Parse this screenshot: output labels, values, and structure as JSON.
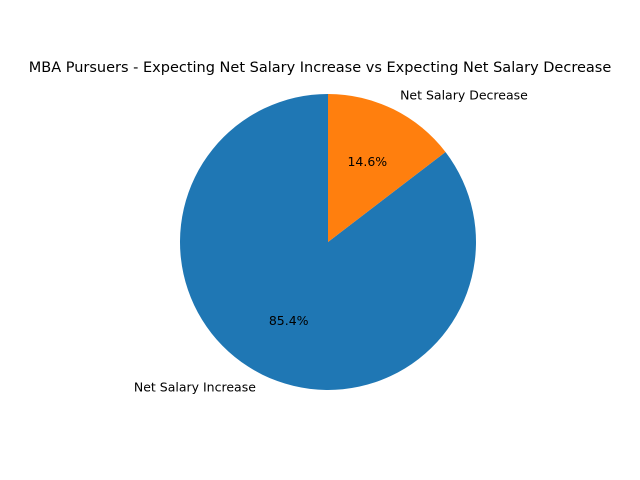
{
  "chart_data": {
    "type": "pie",
    "title": "MBA Pursuers - Expecting Net Salary Increase vs Expecting Net Salary Decrease",
    "categories": [
      "Net Salary Increase",
      "Net Salary Decrease"
    ],
    "values": [
      85.4,
      14.6
    ],
    "value_labels": [
      "85.4%",
      "14.6%"
    ],
    "colors": [
      "#1f77b4",
      "#ff7f0e"
    ],
    "start_angle_deg": 90,
    "direction": "counterclockwise",
    "legend": "none"
  }
}
